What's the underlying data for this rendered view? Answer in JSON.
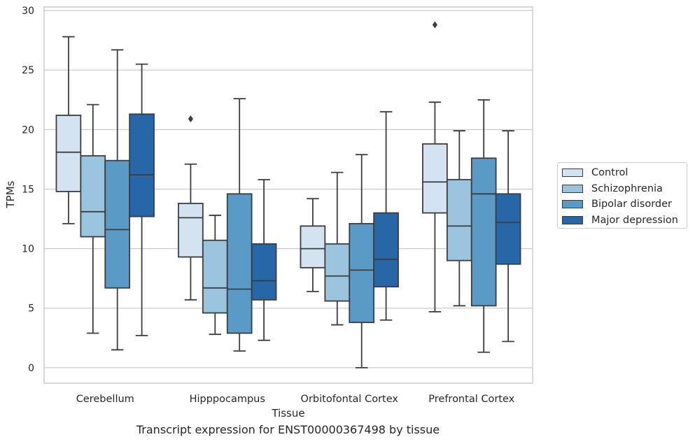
{
  "chart_data": {
    "type": "box",
    "ylabel": "TPMs",
    "xlabel": "Tissue",
    "caption": "Transcript expression for ENST00000367498 by tissue",
    "ylim": [
      -1.3,
      30.3
    ],
    "yticks": [
      0,
      5,
      10,
      15,
      20,
      25,
      30
    ],
    "grid": true,
    "legend_position": "right",
    "categories": [
      "Cerebellum",
      "Hipppocampus",
      "Orbitofontal Cortex",
      "Prefrontal Cortex"
    ],
    "series": [
      {
        "name": "Control",
        "color": "#d3e3f2",
        "boxes": [
          {
            "whisker_low": 12.1,
            "q1": 14.8,
            "median": 18.1,
            "q3": 21.2,
            "whisker_high": 27.8,
            "outliers": []
          },
          {
            "whisker_low": 5.7,
            "q1": 9.3,
            "median": 12.6,
            "q3": 13.8,
            "whisker_high": 17.1,
            "outliers": [
              20.9
            ]
          },
          {
            "whisker_low": 6.4,
            "q1": 8.4,
            "median": 10.0,
            "q3": 11.9,
            "whisker_high": 14.2,
            "outliers": []
          },
          {
            "whisker_low": 4.7,
            "q1": 13.0,
            "median": 15.6,
            "q3": 18.8,
            "whisker_high": 22.3,
            "outliers": [
              28.8
            ]
          }
        ]
      },
      {
        "name": "Schizophrenia",
        "color": "#9ac4de",
        "boxes": [
          {
            "whisker_low": 2.9,
            "q1": 11.0,
            "median": 13.1,
            "q3": 17.8,
            "whisker_high": 22.1,
            "outliers": []
          },
          {
            "whisker_low": 2.8,
            "q1": 4.6,
            "median": 6.7,
            "q3": 10.7,
            "whisker_high": 12.8,
            "outliers": []
          },
          {
            "whisker_low": 3.6,
            "q1": 5.6,
            "median": 7.7,
            "q3": 10.4,
            "whisker_high": 16.4,
            "outliers": []
          },
          {
            "whisker_low": 5.2,
            "q1": 9.0,
            "median": 11.9,
            "q3": 15.8,
            "whisker_high": 19.9,
            "outliers": []
          }
        ]
      },
      {
        "name": "Bipolar disorder",
        "color": "#5a9ac7",
        "boxes": [
          {
            "whisker_low": 1.5,
            "q1": 6.7,
            "median": 11.6,
            "q3": 17.4,
            "whisker_high": 26.7,
            "outliers": []
          },
          {
            "whisker_low": 1.4,
            "q1": 2.9,
            "median": 6.6,
            "q3": 14.6,
            "whisker_high": 22.6,
            "outliers": []
          },
          {
            "whisker_low": 0.0,
            "q1": 3.8,
            "median": 8.2,
            "q3": 12.1,
            "whisker_high": 17.9,
            "outliers": []
          },
          {
            "whisker_low": 1.3,
            "q1": 5.2,
            "median": 14.6,
            "q3": 17.6,
            "whisker_high": 22.5,
            "outliers": []
          }
        ]
      },
      {
        "name": "Major depression",
        "color": "#2767a8",
        "boxes": [
          {
            "whisker_low": 2.7,
            "q1": 12.7,
            "median": 16.2,
            "q3": 21.3,
            "whisker_high": 25.5,
            "outliers": []
          },
          {
            "whisker_low": 2.3,
            "q1": 5.7,
            "median": 7.3,
            "q3": 10.4,
            "whisker_high": 15.8,
            "outliers": []
          },
          {
            "whisker_low": 4.0,
            "q1": 6.8,
            "median": 9.1,
            "q3": 13.0,
            "whisker_high": 21.5,
            "outliers": []
          },
          {
            "whisker_low": 2.2,
            "q1": 8.7,
            "median": 12.2,
            "q3": 14.6,
            "whisker_high": 19.9,
            "outliers": []
          }
        ]
      }
    ]
  }
}
